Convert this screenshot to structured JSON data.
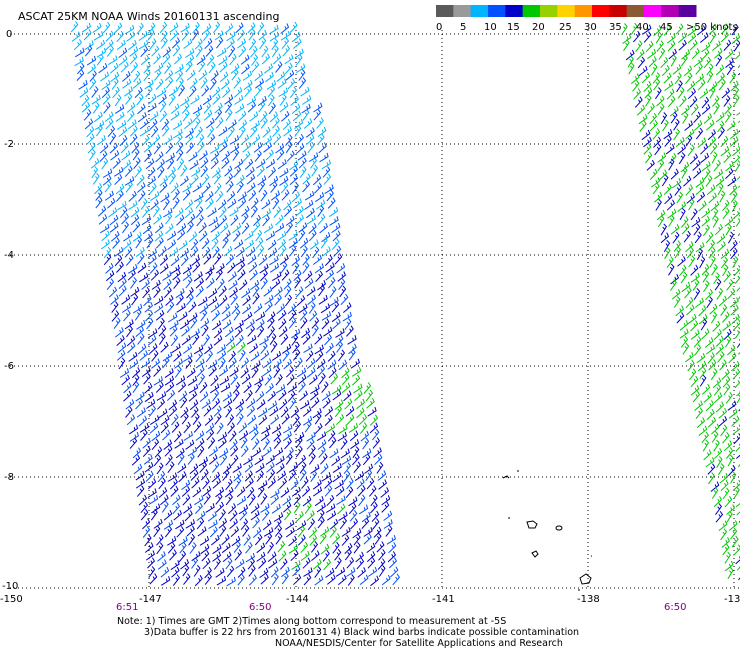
{
  "title": "ASCAT 25KM NOAA Winds 20160131 ascending",
  "legend": {
    "labels": [
      "0",
      "5",
      "10",
      "15",
      "20",
      "25",
      "30",
      "35",
      "40",
      "45",
      ">50 knots"
    ],
    "colors": [
      "#5a5a5a",
      "#9a9a9a",
      "#00b4ff",
      "#0050ff",
      "#0000c8",
      "#00c800",
      "#96d200",
      "#ffd200",
      "#ff9600",
      "#ff0000",
      "#c80000",
      "#8c5a32",
      "#ff00ff",
      "#b400b4",
      "#5a00a0"
    ]
  },
  "axes": {
    "lat_labels": [
      "0",
      "-2",
      "-4",
      "-6",
      "-8",
      "-10"
    ],
    "lon_labels": [
      "-150",
      "-147",
      "-144",
      "-141",
      "-138",
      "-13"
    ]
  },
  "times": [
    "6:51",
    "6:50",
    "6:50"
  ],
  "notes": [
    "Note: 1) Times are GMT 2)Times along bottom correspond to measurement at -5S",
    "3)Data buffer is 22 hrs from 20160131 4) Black wind barbs indicate possible contamination",
    "NOAA/NESDIS/Center for Satellite Applications and Research"
  ],
  "wind_colors": {
    "cyan": "#00b4ff",
    "blue": "#0050ff",
    "navy": "#0000c8",
    "green": "#00c800",
    "coast": "#000000"
  }
}
